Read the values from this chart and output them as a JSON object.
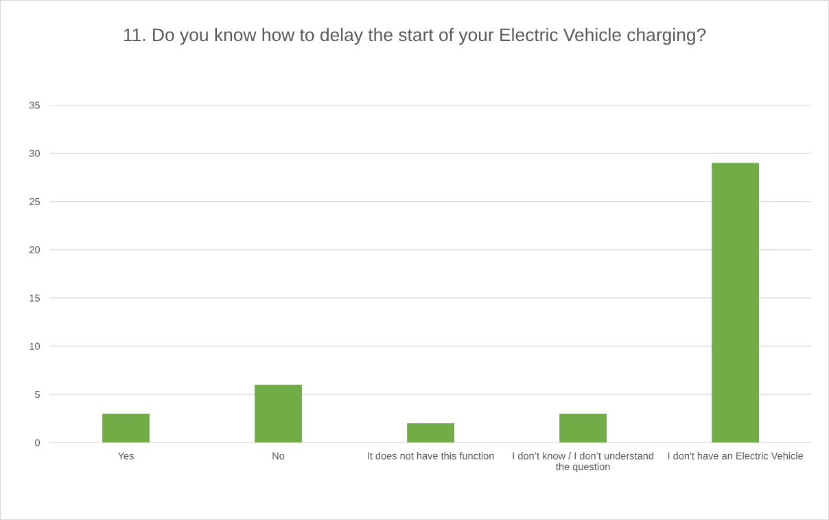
{
  "chart_data": {
    "type": "bar",
    "title": "11. Do you know how to delay the start of your Electric Vehicle charging?",
    "categories": [
      "Yes",
      "No",
      "It does not have this function",
      "I don’t know / I don’t understand the question",
      "I don't have an Electric Vehicle"
    ],
    "values": [
      3,
      6,
      2,
      3,
      29
    ],
    "color": "#70ad47",
    "ylim": [
      0,
      35
    ],
    "yticks": [
      0,
      5,
      10,
      15,
      20,
      25,
      30,
      35
    ],
    "grid": "y",
    "legend": false
  }
}
